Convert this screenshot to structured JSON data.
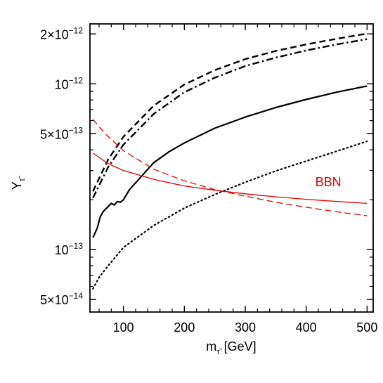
{
  "chart_data": {
    "type": "line",
    "title": "",
    "xlabel": "mτ̃ [GeV]",
    "xlabel_main": "m",
    "xlabel_sub": "τ̃",
    "xlabel_unit": "[GeV]",
    "ylabel": "Yτ̃",
    "ylabel_main": "Y",
    "ylabel_sub": "τ̃",
    "x_scale": "linear",
    "y_scale": "log",
    "xlim": [
      45,
      510
    ],
    "ylim": [
      4.2e-14,
      2.3e-12
    ],
    "grid": false,
    "x_ticks": [
      {
        "value": 100,
        "label": "100"
      },
      {
        "value": 200,
        "label": "200"
      },
      {
        "value": 300,
        "label": "300"
      },
      {
        "value": 400,
        "label": "400"
      },
      {
        "value": 500,
        "label": "500"
      }
    ],
    "y_ticks": [
      {
        "value": 5e-14,
        "mantissa": "5×10",
        "exponent": "−14"
      },
      {
        "value": 1e-13,
        "mantissa": "10",
        "exponent": "−13"
      },
      {
        "value": 5e-13,
        "mantissa": "5×10",
        "exponent": "−13"
      },
      {
        "value": 1e-12,
        "mantissa": "10",
        "exponent": "−12"
      },
      {
        "value": 2e-12,
        "mantissa": "2×10",
        "exponent": "−12"
      }
    ],
    "annotations": [
      {
        "text": "BBN",
        "x": 415,
        "y": 2.58e-13,
        "color": "#e00000"
      }
    ],
    "series": [
      {
        "style": "dashed",
        "color": "#000000",
        "width": 2.4,
        "x": [
          50,
          75,
          100,
          150,
          200,
          250,
          300,
          350,
          400,
          450,
          500
        ],
        "y": [
          2.25e-13,
          3.5e-13,
          4.8e-13,
          7.4e-13,
          9.9e-13,
          1.21e-12,
          1.41e-12,
          1.58e-12,
          1.73e-12,
          1.87e-12,
          2.01e-12
        ]
      },
      {
        "style": "dashdot",
        "color": "#000000",
        "width": 2.4,
        "x": [
          50,
          75,
          100,
          150,
          200,
          250,
          300,
          350,
          400,
          450,
          500
        ],
        "y": [
          2.05e-13,
          3.15e-13,
          4.3e-13,
          6.6e-13,
          8.9e-13,
          1.09e-12,
          1.28e-12,
          1.44e-12,
          1.59e-12,
          1.73e-12,
          1.86e-12
        ]
      },
      {
        "style": "solid",
        "color": "#000000",
        "width": 2.2,
        "x": [
          50,
          57,
          62,
          67,
          75,
          80,
          85,
          90,
          95,
          100,
          110,
          125,
          150,
          175,
          200,
          250,
          300,
          350,
          400,
          450,
          500
        ],
        "y": [
          1.18e-13,
          1.35e-13,
          1.58e-13,
          1.7e-13,
          1.82e-13,
          1.9e-13,
          1.86e-13,
          1.95e-13,
          1.93e-13,
          2e-13,
          2.3e-13,
          2.65e-13,
          3.35e-13,
          3.9e-13,
          4.4e-13,
          5.4e-13,
          6.3e-13,
          7.2e-13,
          8.05e-13,
          8.9e-13,
          9.7e-13
        ]
      },
      {
        "style": "dotted",
        "color": "#000000",
        "width": 2.2,
        "x": [
          50,
          60,
          75,
          100,
          150,
          200,
          250,
          300,
          350,
          400,
          450,
          500
        ],
        "y": [
          5.8e-14,
          6.8e-14,
          8e-14,
          1.03e-13,
          1.4e-13,
          1.78e-13,
          2.15e-13,
          2.55e-13,
          2.98e-13,
          3.42e-13,
          3.92e-13,
          4.5e-13
        ]
      },
      {
        "style": "dashed",
        "color": "#e00000",
        "width": 1.3,
        "x": [
          50,
          70,
          100,
          150,
          200,
          250,
          300,
          350,
          400,
          450,
          500
        ],
        "y": [
          6.1e-13,
          5e-13,
          3.95e-13,
          3.05e-13,
          2.6e-13,
          2.3e-13,
          2.1e-13,
          1.93e-13,
          1.8e-13,
          1.69e-13,
          1.6e-13
        ]
      },
      {
        "style": "solid",
        "color": "#e00000",
        "width": 1.3,
        "x": [
          50,
          75,
          100,
          150,
          200,
          250,
          300,
          350,
          400,
          450,
          500
        ],
        "y": [
          3.82e-13,
          3.3e-13,
          3e-13,
          2.65e-13,
          2.42e-13,
          2.28e-13,
          2.17e-13,
          2.08e-13,
          2.01e-13,
          1.95e-13,
          1.9e-13
        ]
      }
    ]
  }
}
